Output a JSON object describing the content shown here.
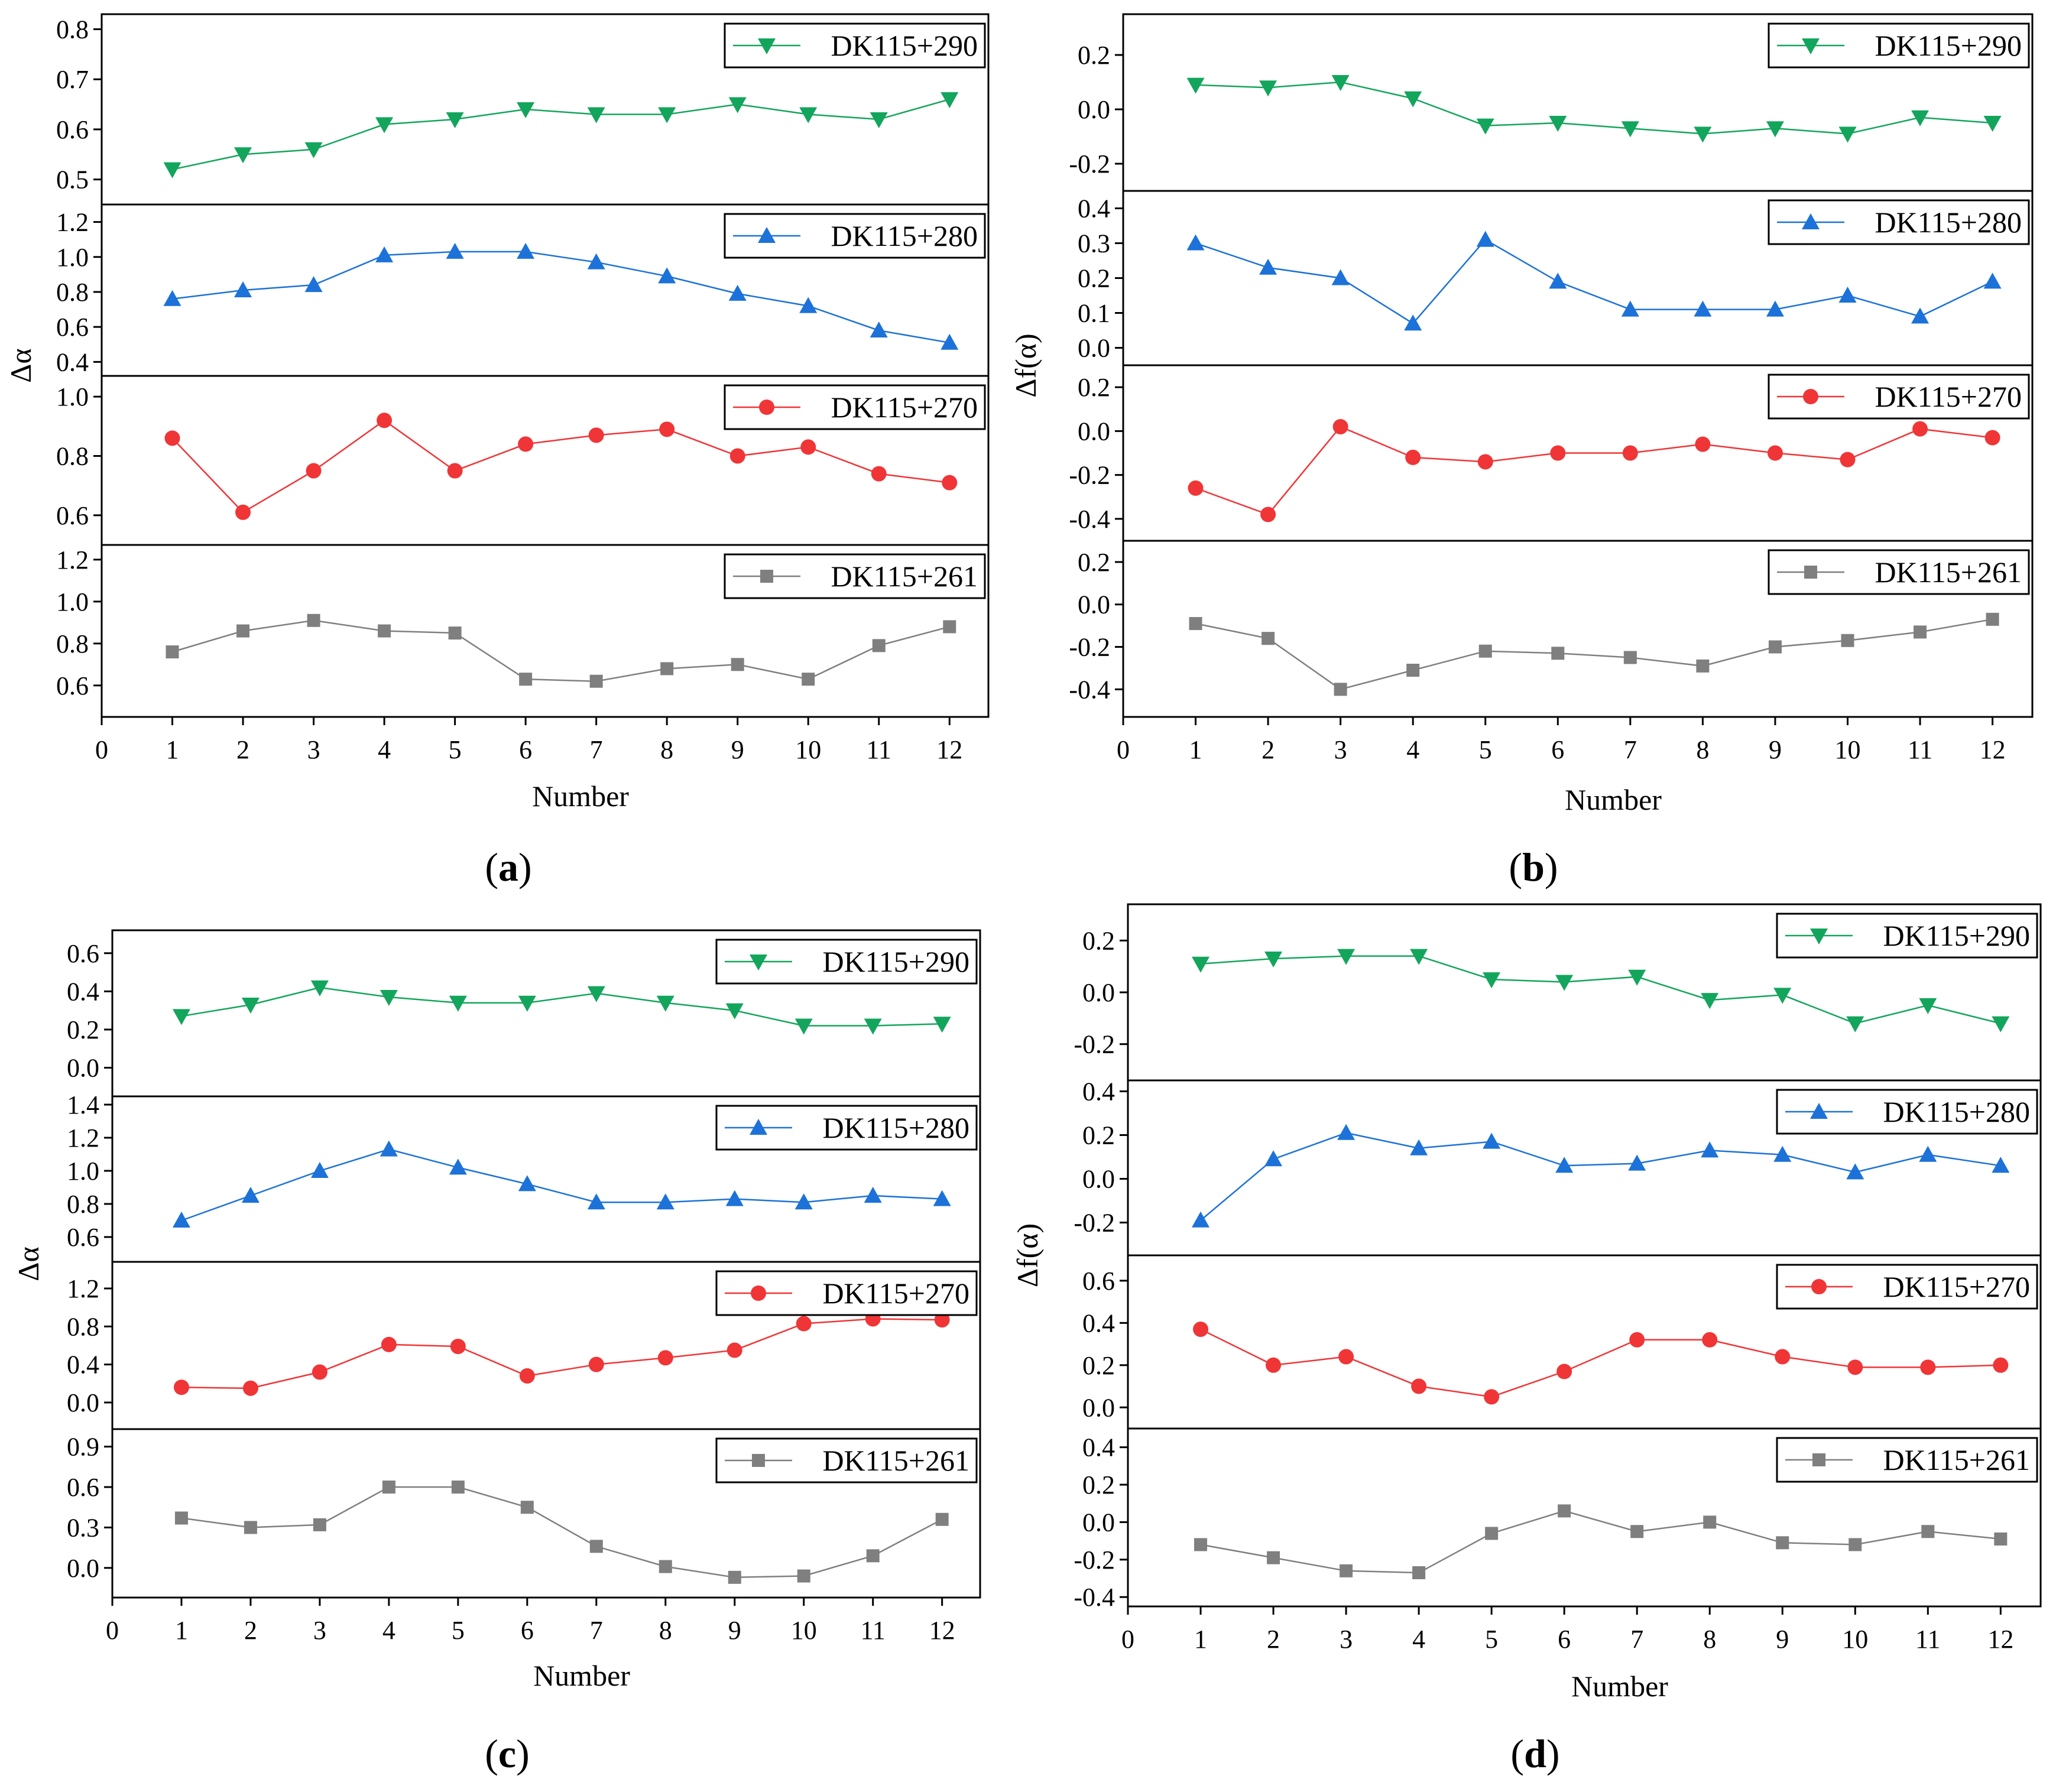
{
  "colors": {
    "DK115+290": "#13a55c",
    "DK115+280": "#1c72d8",
    "DK115+270": "#f03537",
    "DK115+261": "#7f7f7f"
  },
  "markers": {
    "DK115+290": "triangle-down",
    "DK115+280": "triangle-up",
    "DK115+270": "circle",
    "DK115+261": "square"
  },
  "chart_data": [
    {
      "id": "a",
      "type": "line",
      "caption": "(a)",
      "caption_letter": "a",
      "xlabel": "Number",
      "ylabel": "Δα",
      "x": [
        1,
        2,
        3,
        4,
        5,
        6,
        7,
        8,
        9,
        10,
        11,
        12
      ],
      "xlim": [
        0,
        12.55
      ],
      "xticks": [
        "0",
        "1",
        "2",
        "3",
        "4",
        "5",
        "6",
        "7",
        "8",
        "9",
        "10",
        "11",
        "12"
      ],
      "panels": [
        {
          "name": "DK115+290",
          "ylim": [
            0.45,
            0.83
          ],
          "yticks": [
            "0.5",
            "0.6",
            "0.7",
            "0.8"
          ],
          "yvals": [
            0.5,
            0.6,
            0.7,
            0.8
          ],
          "values": [
            0.52,
            0.55,
            0.56,
            0.61,
            0.62,
            0.64,
            0.63,
            0.63,
            0.65,
            0.63,
            0.62,
            0.66
          ]
        },
        {
          "name": "DK115+280",
          "ylim": [
            0.32,
            1.3
          ],
          "yticks": [
            "0.4",
            "0.6",
            "0.8",
            "1.0",
            "1.2"
          ],
          "yvals": [
            0.4,
            0.6,
            0.8,
            1.0,
            1.2
          ],
          "values": [
            0.76,
            0.81,
            0.84,
            1.01,
            1.03,
            1.03,
            0.97,
            0.89,
            0.79,
            0.72,
            0.58,
            0.51
          ]
        },
        {
          "name": "DK115+270",
          "ylim": [
            0.5,
            1.07
          ],
          "yticks": [
            "0.6",
            "0.8",
            "1.0"
          ],
          "yvals": [
            0.6,
            0.8,
            1.0
          ],
          "values": [
            0.86,
            0.61,
            0.75,
            0.92,
            0.75,
            0.84,
            0.87,
            0.89,
            0.8,
            0.83,
            0.74,
            0.71
          ]
        },
        {
          "name": "DK115+261",
          "ylim": [
            0.45,
            1.27
          ],
          "yticks": [
            "0.6",
            "0.8",
            "1.0",
            "1.2"
          ],
          "yvals": [
            0.6,
            0.8,
            1.0,
            1.2
          ],
          "values": [
            0.76,
            0.86,
            0.91,
            0.86,
            0.85,
            0.63,
            0.62,
            0.68,
            0.7,
            0.63,
            0.79,
            0.88
          ]
        }
      ]
    },
    {
      "id": "b",
      "type": "line",
      "caption": "(b)",
      "caption_letter": "b",
      "xlabel": "Number",
      "ylabel": "Δf(α)",
      "x": [
        1,
        2,
        3,
        4,
        5,
        6,
        7,
        8,
        9,
        10,
        11,
        12
      ],
      "xlim": [
        0,
        12.55
      ],
      "xticks": [
        "0",
        "1",
        "2",
        "3",
        "4",
        "5",
        "6",
        "7",
        "8",
        "9",
        "10",
        "11",
        "12"
      ],
      "panels": [
        {
          "name": "DK115+290",
          "ylim": [
            -0.3,
            0.35
          ],
          "yticks": [
            "-0.2",
            "0.0",
            "0.2"
          ],
          "yvals": [
            -0.2,
            0.0,
            0.2
          ],
          "values": [
            0.09,
            0.08,
            0.1,
            0.04,
            -0.06,
            -0.05,
            -0.07,
            -0.09,
            -0.07,
            -0.09,
            -0.03,
            -0.05
          ]
        },
        {
          "name": "DK115+280",
          "ylim": [
            -0.05,
            0.45
          ],
          "yticks": [
            "0.0",
            "0.1",
            "0.2",
            "0.3",
            "0.4"
          ],
          "yvals": [
            0.0,
            0.1,
            0.2,
            0.3,
            0.4
          ],
          "values": [
            0.3,
            0.23,
            0.2,
            0.07,
            0.31,
            0.19,
            0.11,
            0.11,
            0.11,
            0.15,
            0.09,
            0.19
          ]
        },
        {
          "name": "DK115+270",
          "ylim": [
            -0.5,
            0.3
          ],
          "yticks": [
            "-0.4",
            "-0.2",
            "0.0",
            "0.2"
          ],
          "yvals": [
            -0.4,
            -0.2,
            0.0,
            0.2
          ],
          "values": [
            -0.26,
            -0.38,
            0.02,
            -0.12,
            -0.14,
            -0.1,
            -0.1,
            -0.06,
            -0.1,
            -0.13,
            0.01,
            -0.03
          ]
        },
        {
          "name": "DK115+261",
          "ylim": [
            -0.53,
            0.3
          ],
          "yticks": [
            "-0.4",
            "-0.2",
            "0.0",
            "0.2"
          ],
          "yvals": [
            -0.4,
            -0.2,
            0.0,
            0.2
          ],
          "values": [
            -0.09,
            -0.16,
            -0.4,
            -0.31,
            -0.22,
            -0.23,
            -0.25,
            -0.29,
            -0.2,
            -0.17,
            -0.13,
            -0.07
          ]
        }
      ]
    },
    {
      "id": "c",
      "type": "line",
      "caption": "(c)",
      "caption_letter": "c",
      "xlabel": "Number",
      "ylabel": "Δα",
      "x": [
        1,
        2,
        3,
        4,
        5,
        6,
        7,
        8,
        9,
        10,
        11,
        12
      ],
      "xlim": [
        0,
        12.55
      ],
      "xticks": [
        "0",
        "1",
        "2",
        "3",
        "4",
        "5",
        "6",
        "7",
        "8",
        "9",
        "10",
        "11",
        "12"
      ],
      "panels": [
        {
          "name": "DK115+290",
          "ylim": [
            -0.15,
            0.72
          ],
          "yticks": [
            "0.0",
            "0.2",
            "0.4",
            "0.6"
          ],
          "yvals": [
            0.0,
            0.2,
            0.4,
            0.6
          ],
          "values": [
            0.27,
            0.33,
            0.42,
            0.37,
            0.34,
            0.34,
            0.39,
            0.34,
            0.3,
            0.22,
            0.22,
            0.23
          ]
        },
        {
          "name": "DK115+280",
          "ylim": [
            0.45,
            1.45
          ],
          "yticks": [
            "0.6",
            "0.8",
            "1.0",
            "1.2",
            "1.4"
          ],
          "yvals": [
            0.6,
            0.8,
            1.0,
            1.2,
            1.4
          ],
          "values": [
            0.7,
            0.85,
            1.0,
            1.13,
            1.02,
            0.92,
            0.81,
            0.81,
            0.83,
            0.81,
            0.85,
            0.83
          ]
        },
        {
          "name": "DK115+270",
          "ylim": [
            -0.28,
            1.48
          ],
          "yticks": [
            "0.0",
            "0.4",
            "0.8",
            "1.2"
          ],
          "yvals": [
            0.0,
            0.4,
            0.8,
            1.2
          ],
          "values": [
            0.16,
            0.15,
            0.32,
            0.61,
            0.59,
            0.28,
            0.4,
            0.47,
            0.55,
            0.83,
            0.88,
            0.87
          ]
        },
        {
          "name": "DK115+261",
          "ylim": [
            -0.22,
            1.03
          ],
          "yticks": [
            "0.0",
            "0.3",
            "0.6",
            "0.9"
          ],
          "yvals": [
            0.0,
            0.3,
            0.6,
            0.9
          ],
          "values": [
            0.37,
            0.3,
            0.32,
            0.6,
            0.6,
            0.45,
            0.16,
            0.01,
            -0.07,
            -0.06,
            0.09,
            0.36
          ]
        }
      ]
    },
    {
      "id": "d",
      "type": "line",
      "caption": "(d)",
      "caption_letter": "d",
      "xlabel": "Number",
      "ylabel": "Δf(α)",
      "x": [
        1,
        2,
        3,
        4,
        5,
        6,
        7,
        8,
        9,
        10,
        11,
        12
      ],
      "xlim": [
        0,
        12.55
      ],
      "xticks": [
        "0",
        "1",
        "2",
        "3",
        "4",
        "5",
        "6",
        "7",
        "8",
        "9",
        "10",
        "11",
        "12"
      ],
      "panels": [
        {
          "name": "DK115+290",
          "ylim": [
            -0.34,
            0.34
          ],
          "yticks": [
            "-0.2",
            "0.0",
            "0.2"
          ],
          "yvals": [
            -0.2,
            0.0,
            0.2
          ],
          "values": [
            0.11,
            0.13,
            0.14,
            0.14,
            0.05,
            0.04,
            0.06,
            -0.03,
            -0.01,
            -0.12,
            -0.05,
            -0.12
          ]
        },
        {
          "name": "DK115+280",
          "ylim": [
            -0.35,
            0.45
          ],
          "yticks": [
            "-0.2",
            "0.0",
            "0.2",
            "0.4"
          ],
          "yvals": [
            -0.2,
            0.0,
            0.2,
            0.4
          ],
          "values": [
            -0.19,
            0.09,
            0.21,
            0.14,
            0.17,
            0.06,
            0.07,
            0.13,
            0.11,
            0.03,
            0.11,
            0.06
          ]
        },
        {
          "name": "DK115+270",
          "ylim": [
            -0.1,
            0.72
          ],
          "yticks": [
            "0.0",
            "0.2",
            "0.4",
            "0.6"
          ],
          "yvals": [
            0.0,
            0.2,
            0.4,
            0.6
          ],
          "values": [
            0.37,
            0.2,
            0.24,
            0.1,
            0.05,
            0.17,
            0.32,
            0.32,
            0.24,
            0.19,
            0.19,
            0.2
          ]
        },
        {
          "name": "DK115+261",
          "ylim": [
            -0.45,
            0.5
          ],
          "yticks": [
            "-0.4",
            "-0.2",
            "0.0",
            "0.2",
            "0.4"
          ],
          "yvals": [
            -0.4,
            -0.2,
            0.0,
            0.2,
            0.4
          ],
          "values": [
            -0.12,
            -0.19,
            -0.26,
            -0.27,
            -0.06,
            0.06,
            -0.05,
            0.0,
            -0.11,
            -0.12,
            -0.05,
            -0.09
          ]
        }
      ]
    }
  ]
}
